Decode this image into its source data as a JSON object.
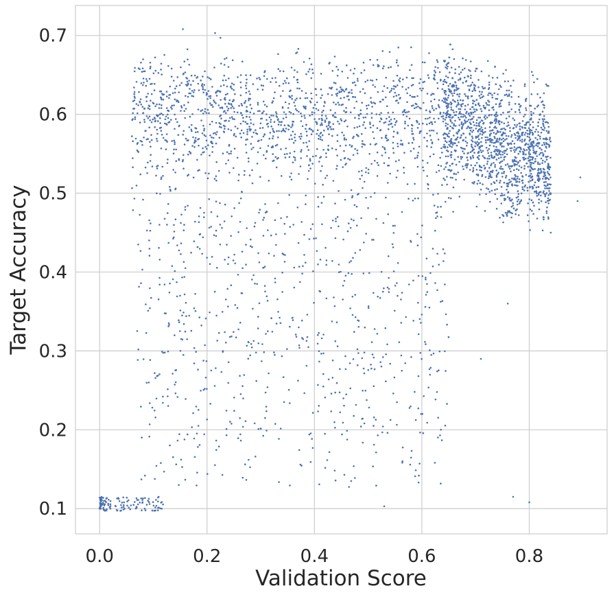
{
  "chart_data": {
    "type": "scatter",
    "xlabel": "Validation Score",
    "ylabel": "Target Accuracy",
    "xlim": [
      -0.045,
      0.945
    ],
    "ylim": [
      0.068,
      0.738
    ],
    "xticks": [
      0.0,
      0.2,
      0.4,
      0.6,
      0.8
    ],
    "xtick_labels": [
      "0.0",
      "0.2",
      "0.4",
      "0.6",
      "0.8"
    ],
    "yticks": [
      0.1,
      0.2,
      0.3,
      0.4,
      0.5,
      0.6,
      0.7
    ],
    "ytick_labels": [
      "0.1",
      "0.2",
      "0.3",
      "0.4",
      "0.5",
      "0.6",
      "0.7"
    ],
    "grid": true,
    "marker_color": "#4c72b0",
    "point_count_approx": 4000,
    "clusters": [
      {
        "description_for": "dense top band",
        "x_range": [
          0.06,
          0.66
        ],
        "y_range": [
          0.47,
          0.66
        ],
        "count": 1500
      },
      {
        "description_for": "dense right blob",
        "x_range": [
          0.64,
          0.84
        ],
        "y_range": [
          0.46,
          0.63
        ],
        "count": 1300
      },
      {
        "description_for": "sparse middle",
        "x_range": [
          0.07,
          0.65
        ],
        "y_range": [
          0.12,
          0.47
        ],
        "count": 700
      },
      {
        "description_for": "bottom-left cluster",
        "x_range": [
          0.0,
          0.12
        ],
        "y_range": [
          0.097,
          0.115
        ],
        "count": 120
      }
    ],
    "points": [
      {
        "x": 0.0,
        "y": 0.1
      },
      {
        "x": 0.01,
        "y": 0.11
      },
      {
        "x": 0.02,
        "y": 0.1
      },
      {
        "x": 0.09,
        "y": 0.11
      },
      {
        "x": 0.11,
        "y": 0.115
      },
      {
        "x": 0.155,
        "y": 0.708
      },
      {
        "x": 0.215,
        "y": 0.703
      },
      {
        "x": 0.225,
        "y": 0.697
      },
      {
        "x": 0.37,
        "y": 0.683
      },
      {
        "x": 0.54,
        "y": 0.679
      },
      {
        "x": 0.58,
        "y": 0.685
      },
      {
        "x": 0.66,
        "y": 0.67
      },
      {
        "x": 0.895,
        "y": 0.52
      },
      {
        "x": 0.89,
        "y": 0.49
      },
      {
        "x": 0.84,
        "y": 0.45
      },
      {
        "x": 0.76,
        "y": 0.36
      },
      {
        "x": 0.71,
        "y": 0.29
      },
      {
        "x": 0.77,
        "y": 0.115
      },
      {
        "x": 0.8,
        "y": 0.108
      },
      {
        "x": 0.53,
        "y": 0.103
      }
    ]
  }
}
